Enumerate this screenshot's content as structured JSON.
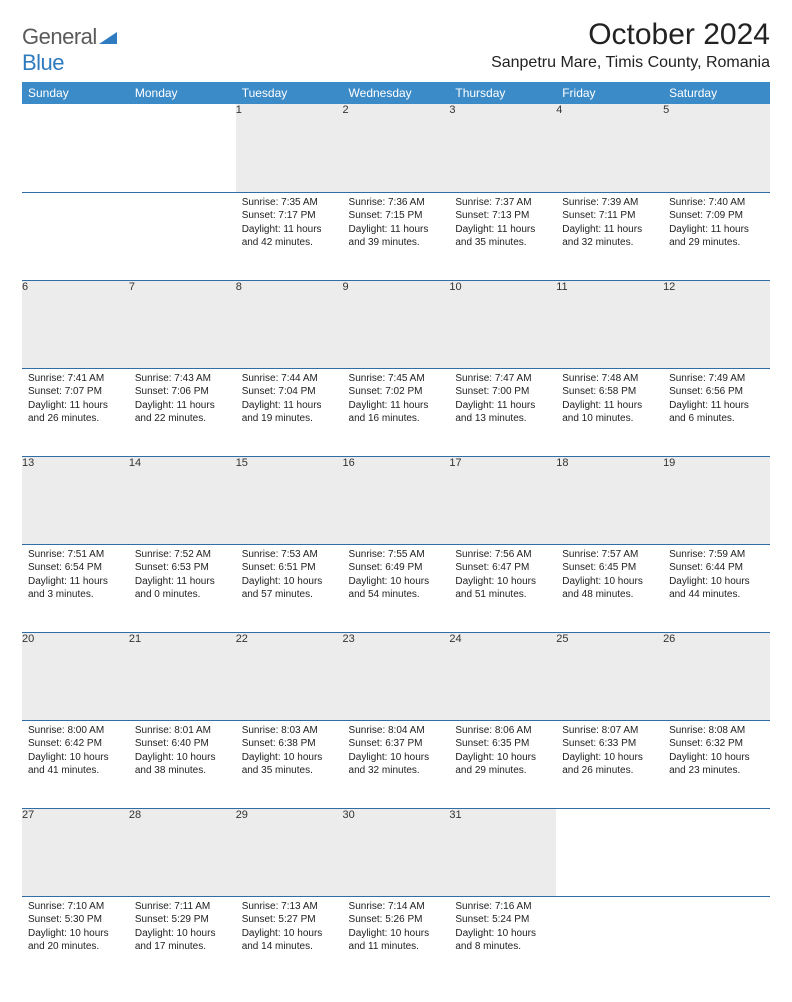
{
  "branding": {
    "logo_general": "General",
    "logo_blue": "Blue"
  },
  "header": {
    "month_title": "October 2024",
    "location": "Sanpetru Mare, Timis County, Romania"
  },
  "colors": {
    "header_bg": "#3b8bc8",
    "header_text": "#ffffff",
    "daynum_bg": "#ececec",
    "row_divider": "#2d6ea5",
    "logo_gray": "#5a5a5a",
    "logo_blue": "#2f7bbf"
  },
  "weekdays": [
    "Sunday",
    "Monday",
    "Tuesday",
    "Wednesday",
    "Thursday",
    "Friday",
    "Saturday"
  ],
  "days": {
    "1": {
      "sunrise": "7:35 AM",
      "sunset": "7:17 PM",
      "daylight": "11 hours and 42 minutes."
    },
    "2": {
      "sunrise": "7:36 AM",
      "sunset": "7:15 PM",
      "daylight": "11 hours and 39 minutes."
    },
    "3": {
      "sunrise": "7:37 AM",
      "sunset": "7:13 PM",
      "daylight": "11 hours and 35 minutes."
    },
    "4": {
      "sunrise": "7:39 AM",
      "sunset": "7:11 PM",
      "daylight": "11 hours and 32 minutes."
    },
    "5": {
      "sunrise": "7:40 AM",
      "sunset": "7:09 PM",
      "daylight": "11 hours and 29 minutes."
    },
    "6": {
      "sunrise": "7:41 AM",
      "sunset": "7:07 PM",
      "daylight": "11 hours and 26 minutes."
    },
    "7": {
      "sunrise": "7:43 AM",
      "sunset": "7:06 PM",
      "daylight": "11 hours and 22 minutes."
    },
    "8": {
      "sunrise": "7:44 AM",
      "sunset": "7:04 PM",
      "daylight": "11 hours and 19 minutes."
    },
    "9": {
      "sunrise": "7:45 AM",
      "sunset": "7:02 PM",
      "daylight": "11 hours and 16 minutes."
    },
    "10": {
      "sunrise": "7:47 AM",
      "sunset": "7:00 PM",
      "daylight": "11 hours and 13 minutes."
    },
    "11": {
      "sunrise": "7:48 AM",
      "sunset": "6:58 PM",
      "daylight": "11 hours and 10 minutes."
    },
    "12": {
      "sunrise": "7:49 AM",
      "sunset": "6:56 PM",
      "daylight": "11 hours and 6 minutes."
    },
    "13": {
      "sunrise": "7:51 AM",
      "sunset": "6:54 PM",
      "daylight": "11 hours and 3 minutes."
    },
    "14": {
      "sunrise": "7:52 AM",
      "sunset": "6:53 PM",
      "daylight": "11 hours and 0 minutes."
    },
    "15": {
      "sunrise": "7:53 AM",
      "sunset": "6:51 PM",
      "daylight": "10 hours and 57 minutes."
    },
    "16": {
      "sunrise": "7:55 AM",
      "sunset": "6:49 PM",
      "daylight": "10 hours and 54 minutes."
    },
    "17": {
      "sunrise": "7:56 AM",
      "sunset": "6:47 PM",
      "daylight": "10 hours and 51 minutes."
    },
    "18": {
      "sunrise": "7:57 AM",
      "sunset": "6:45 PM",
      "daylight": "10 hours and 48 minutes."
    },
    "19": {
      "sunrise": "7:59 AM",
      "sunset": "6:44 PM",
      "daylight": "10 hours and 44 minutes."
    },
    "20": {
      "sunrise": "8:00 AM",
      "sunset": "6:42 PM",
      "daylight": "10 hours and 41 minutes."
    },
    "21": {
      "sunrise": "8:01 AM",
      "sunset": "6:40 PM",
      "daylight": "10 hours and 38 minutes."
    },
    "22": {
      "sunrise": "8:03 AM",
      "sunset": "6:38 PM",
      "daylight": "10 hours and 35 minutes."
    },
    "23": {
      "sunrise": "8:04 AM",
      "sunset": "6:37 PM",
      "daylight": "10 hours and 32 minutes."
    },
    "24": {
      "sunrise": "8:06 AM",
      "sunset": "6:35 PM",
      "daylight": "10 hours and 29 minutes."
    },
    "25": {
      "sunrise": "8:07 AM",
      "sunset": "6:33 PM",
      "daylight": "10 hours and 26 minutes."
    },
    "26": {
      "sunrise": "8:08 AM",
      "sunset": "6:32 PM",
      "daylight": "10 hours and 23 minutes."
    },
    "27": {
      "sunrise": "7:10 AM",
      "sunset": "5:30 PM",
      "daylight": "10 hours and 20 minutes."
    },
    "28": {
      "sunrise": "7:11 AM",
      "sunset": "5:29 PM",
      "daylight": "10 hours and 17 minutes."
    },
    "29": {
      "sunrise": "7:13 AM",
      "sunset": "5:27 PM",
      "daylight": "10 hours and 14 minutes."
    },
    "30": {
      "sunrise": "7:14 AM",
      "sunset": "5:26 PM",
      "daylight": "10 hours and 11 minutes."
    },
    "31": {
      "sunrise": "7:16 AM",
      "sunset": "5:24 PM",
      "daylight": "10 hours and 8 minutes."
    }
  },
  "labels": {
    "sunrise": "Sunrise:",
    "sunset": "Sunset:",
    "daylight": "Daylight:"
  },
  "layout": {
    "weeks": [
      [
        null,
        null,
        1,
        2,
        3,
        4,
        5
      ],
      [
        6,
        7,
        8,
        9,
        10,
        11,
        12
      ],
      [
        13,
        14,
        15,
        16,
        17,
        18,
        19
      ],
      [
        20,
        21,
        22,
        23,
        24,
        25,
        26
      ],
      [
        27,
        28,
        29,
        30,
        31,
        null,
        null
      ]
    ]
  }
}
